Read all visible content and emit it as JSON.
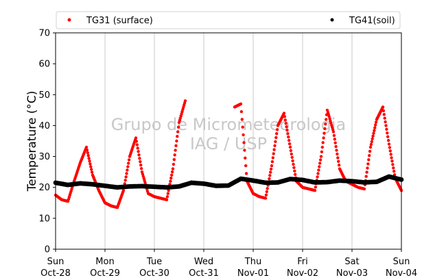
{
  "chart_data": {
    "type": "scatter",
    "title": "",
    "xlabel": "",
    "ylabel": "Temperature (°C)",
    "ylim": [
      0,
      70
    ],
    "yticks": [
      0,
      10,
      20,
      30,
      40,
      50,
      60,
      70
    ],
    "xlim": [
      "2018-10-28 00:00",
      "2018-11-04 00:00"
    ],
    "xtick_labels": [
      {
        "day": "Sun",
        "date": "Oct-28"
      },
      {
        "day": "Mon",
        "date": "Oct-29"
      },
      {
        "day": "Tue",
        "date": "Oct-30"
      },
      {
        "day": "Wed",
        "date": "Oct-31"
      },
      {
        "day": "Thu",
        "date": "Nov-01"
      },
      {
        "day": "Fri",
        "date": "Nov-02"
      },
      {
        "day": "Sat",
        "date": "Nov-03"
      },
      {
        "day": "Sun",
        "date": "Nov-04"
      }
    ],
    "grid": "vertical",
    "legend_position": "top",
    "watermark": [
      "Grupo de Micrometeorologia",
      "IAG / USP"
    ],
    "series": [
      {
        "name": "TG31 (surface)",
        "color": "#ff0000",
        "x": [
          "2018-10-28 00:00",
          "2018-10-28 03:00",
          "2018-10-28 06:00",
          "2018-10-28 09:00",
          "2018-10-28 12:00",
          "2018-10-28 15:00",
          "2018-10-28 18:00",
          "2018-10-28 21:00",
          "2018-10-29 00:00",
          "2018-10-29 03:00",
          "2018-10-29 06:00",
          "2018-10-29 09:00",
          "2018-10-29 12:00",
          "2018-10-29 15:00",
          "2018-10-29 18:00",
          "2018-10-29 21:00",
          "2018-10-30 00:00",
          "2018-10-30 03:00",
          "2018-10-30 06:00",
          "2018-10-30 09:00",
          "2018-10-30 12:00",
          "2018-10-30 15:00",
          "2018-10-30 18:00",
          "2018-10-30 21:00",
          "2018-10-31 00:00",
          "2018-10-31 03:00",
          "2018-10-31 06:00",
          "2018-10-31 09:00",
          "2018-10-31 12:00",
          "2018-10-31 15:00",
          "2018-10-31 18:00",
          "2018-10-31 21:00",
          "2018-11-01 00:00",
          "2018-11-01 03:00",
          "2018-11-01 06:00",
          "2018-11-01 09:00",
          "2018-11-01 12:00",
          "2018-11-01 15:00",
          "2018-11-01 18:00",
          "2018-11-01 21:00",
          "2018-11-02 00:00",
          "2018-11-02 03:00",
          "2018-11-02 06:00",
          "2018-11-02 09:00",
          "2018-11-02 12:00",
          "2018-11-02 15:00",
          "2018-11-02 18:00",
          "2018-11-02 21:00",
          "2018-11-03 00:00",
          "2018-11-03 03:00",
          "2018-11-03 06:00",
          "2018-11-03 09:00",
          "2018-11-03 12:00",
          "2018-11-03 15:00",
          "2018-11-03 18:00",
          "2018-11-03 21:00",
          "2018-11-04 00:00"
        ],
        "y": [
          17.5,
          16,
          15.5,
          22,
          28,
          33,
          24,
          19,
          15,
          14,
          13.5,
          19,
          30,
          36,
          25,
          18,
          17,
          16.5,
          16,
          26,
          41,
          48,
          null,
          null,
          null,
          null,
          null,
          null,
          null,
          46,
          47,
          22,
          18,
          17,
          16.5,
          27,
          40,
          44,
          33,
          22,
          20,
          19.5,
          19,
          30,
          45,
          38,
          26,
          22,
          21,
          20,
          19.5,
          33,
          42,
          46,
          34,
          23,
          19
        ]
      },
      {
        "name": "TG41(soil)",
        "color": "#000000",
        "x": [
          "2018-10-28 00:00",
          "2018-10-28 06:00",
          "2018-10-28 12:00",
          "2018-10-28 18:00",
          "2018-10-29 00:00",
          "2018-10-29 06:00",
          "2018-10-29 12:00",
          "2018-10-29 18:00",
          "2018-10-30 00:00",
          "2018-10-30 06:00",
          "2018-10-30 12:00",
          "2018-10-30 18:00",
          "2018-10-31 00:00",
          "2018-10-31 06:00",
          "2018-10-31 12:00",
          "2018-10-31 18:00",
          "2018-11-01 00:00",
          "2018-11-01 06:00",
          "2018-11-01 12:00",
          "2018-11-01 18:00",
          "2018-11-02 00:00",
          "2018-11-02 06:00",
          "2018-11-02 12:00",
          "2018-11-02 18:00",
          "2018-11-03 00:00",
          "2018-11-03 06:00",
          "2018-11-03 12:00",
          "2018-11-03 18:00",
          "2018-11-04 00:00"
        ],
        "y": [
          21.5,
          20.8,
          21.3,
          21,
          20.5,
          20,
          20.3,
          20.4,
          20.2,
          20,
          20.3,
          21.5,
          21.2,
          20.5,
          20.6,
          22.8,
          22.2,
          21.5,
          21.6,
          22.7,
          22.4,
          21.6,
          21.7,
          22.2,
          22,
          21.6,
          21.8,
          23.5,
          22.5
        ]
      }
    ]
  }
}
